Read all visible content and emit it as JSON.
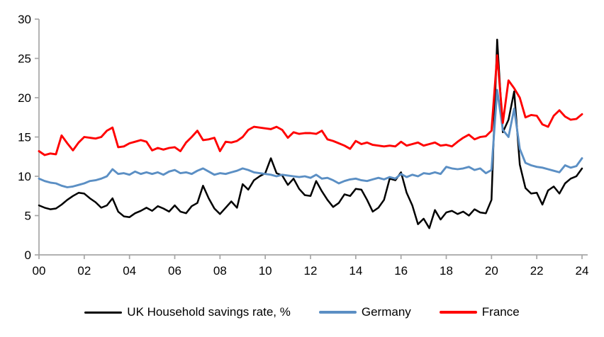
{
  "chart_data": {
    "type": "line",
    "title": "",
    "xlabel": "",
    "ylabel": "",
    "x_start_year": 2000,
    "x_step_years": 0.25,
    "xlim": [
      2000,
      2024.25
    ],
    "ylim": [
      0,
      30
    ],
    "grid": false,
    "legend_position": "bottom",
    "axis_color": "#a6a6a6",
    "tick_label_color": "#000000",
    "y_ticks": [
      "0",
      "5",
      "10",
      "15",
      "20",
      "25",
      "30"
    ],
    "y_tick_values": [
      0,
      5,
      10,
      15,
      20,
      25,
      30
    ],
    "x_ticks": [
      "00",
      "02",
      "04",
      "06",
      "08",
      "10",
      "12",
      "14",
      "16",
      "18",
      "20",
      "22",
      "24"
    ],
    "x_tick_years": [
      2000,
      2002,
      2004,
      2006,
      2008,
      2010,
      2012,
      2014,
      2016,
      2018,
      2020,
      2022,
      2024
    ],
    "series": [
      {
        "name": "UK Household savings rate, %",
        "color": "#000000",
        "values": [
          6.3,
          6.0,
          5.8,
          5.9,
          6.4,
          7.0,
          7.5,
          7.9,
          7.8,
          7.2,
          6.7,
          6.0,
          6.3,
          7.2,
          5.5,
          4.9,
          4.8,
          5.3,
          5.6,
          6.0,
          5.6,
          6.2,
          5.9,
          5.5,
          6.3,
          5.5,
          5.3,
          6.2,
          6.6,
          8.8,
          7.2,
          5.9,
          5.2,
          6.0,
          6.8,
          6.0,
          9.0,
          8.3,
          9.5,
          10.0,
          10.4,
          12.3,
          10.4,
          10.1,
          8.9,
          9.7,
          8.4,
          7.6,
          7.5,
          9.4,
          8.1,
          7.0,
          6.1,
          6.6,
          7.7,
          7.5,
          8.4,
          8.3,
          7.0,
          5.5,
          6.0,
          7.0,
          9.7,
          9.5,
          10.5,
          7.9,
          6.3,
          3.9,
          4.6,
          3.4,
          5.7,
          4.5,
          5.4,
          5.6,
          5.2,
          5.5,
          5.0,
          5.8,
          5.4,
          5.3,
          7.0,
          27.4,
          15.6,
          17.2,
          20.8,
          11.5,
          8.5,
          7.8,
          7.9,
          6.4,
          8.2,
          8.7,
          7.8,
          9.1,
          9.7,
          10.0,
          11.0
        ]
      },
      {
        "name": "Germany",
        "color": "#5b8fc4",
        "values": [
          9.7,
          9.4,
          9.2,
          9.1,
          8.8,
          8.6,
          8.7,
          8.9,
          9.1,
          9.4,
          9.5,
          9.7,
          10.0,
          10.9,
          10.3,
          10.4,
          10.2,
          10.6,
          10.3,
          10.5,
          10.3,
          10.5,
          10.2,
          10.6,
          10.8,
          10.4,
          10.5,
          10.3,
          10.7,
          11.0,
          10.6,
          10.2,
          10.4,
          10.3,
          10.5,
          10.7,
          11.0,
          10.8,
          10.5,
          10.4,
          10.3,
          10.2,
          10.0,
          10.2,
          10.1,
          10.0,
          9.9,
          10.0,
          9.8,
          10.2,
          9.7,
          9.8,
          9.5,
          9.1,
          9.4,
          9.6,
          9.7,
          9.5,
          9.4,
          9.6,
          9.8,
          9.6,
          9.9,
          9.7,
          10.3,
          9.9,
          10.2,
          10.0,
          10.4,
          10.3,
          10.5,
          10.3,
          11.2,
          11.0,
          10.9,
          11.0,
          11.2,
          10.8,
          11.0,
          10.4,
          10.8,
          21.0,
          15.9,
          15.0,
          18.6,
          13.5,
          11.7,
          11.4,
          11.2,
          11.1,
          10.9,
          10.7,
          10.5,
          11.4,
          11.1,
          11.3,
          12.3
        ]
      },
      {
        "name": "France",
        "color": "#ff0000",
        "values": [
          13.2,
          12.7,
          12.9,
          12.8,
          15.2,
          14.2,
          13.3,
          14.3,
          15.0,
          14.9,
          14.8,
          15.0,
          15.8,
          16.2,
          13.7,
          13.8,
          14.2,
          14.4,
          14.6,
          14.4,
          13.3,
          13.6,
          13.4,
          13.6,
          13.7,
          13.2,
          14.3,
          15.0,
          15.8,
          14.6,
          14.7,
          14.9,
          13.2,
          14.4,
          14.3,
          14.5,
          15.0,
          15.9,
          16.3,
          16.2,
          16.1,
          16.0,
          16.3,
          15.9,
          14.9,
          15.6,
          15.4,
          15.5,
          15.5,
          15.4,
          15.8,
          14.7,
          14.5,
          14.2,
          13.9,
          13.5,
          14.5,
          14.1,
          14.3,
          14.0,
          13.9,
          13.8,
          13.9,
          13.8,
          14.4,
          13.9,
          14.1,
          14.3,
          13.9,
          14.1,
          14.3,
          13.9,
          14.0,
          13.8,
          14.4,
          14.9,
          15.3,
          14.7,
          15.0,
          15.1,
          15.8,
          25.4,
          16.8,
          22.2,
          21.2,
          20.0,
          17.5,
          17.8,
          17.7,
          16.6,
          16.3,
          17.7,
          18.4,
          17.6,
          17.2,
          17.3,
          17.9
        ]
      }
    ]
  }
}
